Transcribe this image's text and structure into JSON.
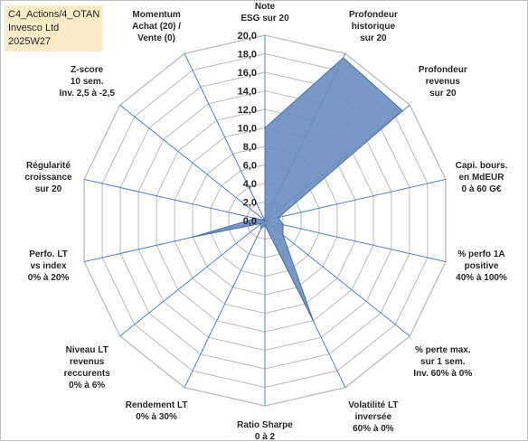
{
  "header": {
    "line1": "C4_Actions/4_OTAN",
    "line2": "Invesco Ltd",
    "line3": "2025W27"
  },
  "chart_data": {
    "type": "radar",
    "rmin": 0,
    "rmax": 20,
    "ticks": [
      "0,0",
      "2,0",
      "4,0",
      "6,0",
      "8,0",
      "10,0",
      "12,0",
      "14,0",
      "16,0",
      "18,0",
      "20,0"
    ],
    "axes": [
      {
        "label": [
          "Note",
          "ESG sur 20"
        ],
        "value": 10.0
      },
      {
        "label": [
          "Profondeur",
          "historique",
          "sur 20"
        ],
        "value": 19.5
      },
      {
        "label": [
          "Profondeur",
          "revenus",
          "sur 20"
        ],
        "value": 19.0
      },
      {
        "label": [
          "Capi. bours.",
          "en MdEUR",
          "0 à 60 G€"
        ],
        "value": 1.5
      },
      {
        "label": [
          "% perfo 1A",
          "positive",
          "40% à 100%"
        ],
        "value": 2.0
      },
      {
        "label": [
          "% perte max.",
          "sur 1 sem.",
          "Inv. 60% à 0%"
        ],
        "value": 2.5
      },
      {
        "label": [
          "Volatilité LT",
          "inversée",
          "60% à 0%"
        ],
        "value": 12.0
      },
      {
        "label": [
          "Ratio Sharpe",
          "0 à 2"
        ],
        "value": 0.5
      },
      {
        "label": [
          "Rendement LT",
          "0% à 30%"
        ],
        "value": 1.0
      },
      {
        "label": [
          "Niveau LT",
          "revenus",
          "reccurents",
          "0% à 6%"
        ],
        "value": 0.5
      },
      {
        "label": [
          "Perfo. LT",
          "vs index",
          "0% à 20%"
        ],
        "value": 8.0
      },
      {
        "label": [
          "Régularité",
          "croissance",
          "sur 20"
        ],
        "value": 1.0
      },
      {
        "label": [
          "Z-score",
          "10 sem.",
          "Inv. 2,5 à -2,5"
        ],
        "value": 0.0
      },
      {
        "label": [
          "Momentum",
          "Achat (20) /",
          "Vente (0)"
        ],
        "value": 0.0
      }
    ],
    "series": [
      {
        "values": [
          10.0,
          19.5,
          19.0,
          1.5,
          2.0,
          2.5,
          12.0,
          0.5,
          1.0,
          0.5,
          8.0,
          1.0,
          0.0,
          0.0
        ]
      }
    ],
    "colors": {
      "fill": "#6d8fc2",
      "stroke": "#4a6fa5",
      "grid": "#bfbfbf",
      "spoke": "#4472c4"
    }
  }
}
